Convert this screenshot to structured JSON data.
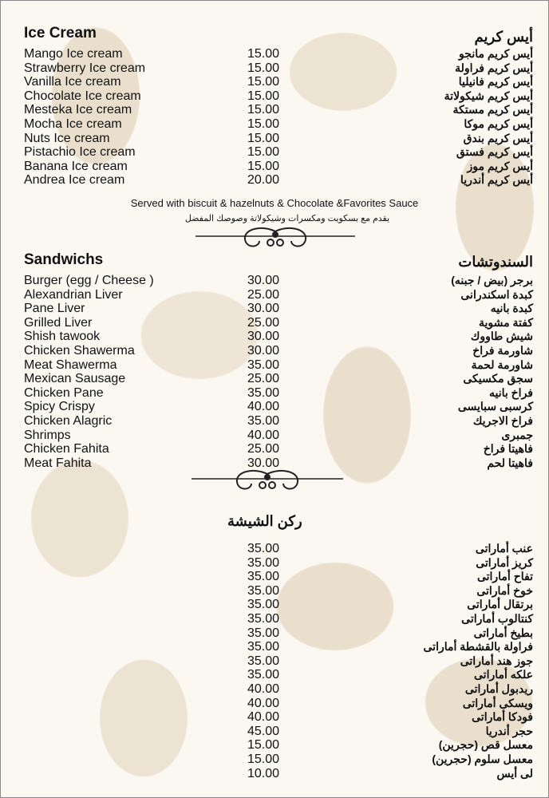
{
  "ice_cream": {
    "title_en": "Ice Cream",
    "title_ar": "أيس كريم",
    "items": [
      {
        "en": "Mango Ice cream",
        "price": "15.00",
        "ar": "أيس كريم مانجو"
      },
      {
        "en": "Strawberry Ice cream",
        "price": "15.00",
        "ar": "أيس كريم فراولة"
      },
      {
        "en": "Vanilla Ice cream",
        "price": "15.00",
        "ar": "أيس كريم فانيليا"
      },
      {
        "en": "Chocolate Ice cream",
        "price": "15.00",
        "ar": "أيس كريم شيكولاتة"
      },
      {
        "en": "Mesteka Ice cream",
        "price": "15.00",
        "ar": "أيس كريم مستكة"
      },
      {
        "en": "Mocha Ice cream",
        "price": "15.00",
        "ar": "أيس كريم موكا"
      },
      {
        "en": "Nuts Ice cream",
        "price": "15.00",
        "ar": "أيس كريم بندق"
      },
      {
        "en": "Pistachio Ice cream",
        "price": "15.00",
        "ar": "أيس كريم فستق"
      },
      {
        "en": "Banana Ice cream",
        "price": "15.00",
        "ar": "أيس كريم موز"
      },
      {
        "en": "Andrea Ice cream",
        "price": "20.00",
        "ar": "أيس كريم أندريا"
      }
    ],
    "note_en": "Served with biscuit & hazelnuts & Chocolate &Favorites Sauce",
    "note_ar": "يقدم مع بسكويت ومكسرات وشيكولاتة وصوصك المفضل"
  },
  "sandwiches": {
    "title_en": "Sandwichs",
    "title_ar": "السندوتشات",
    "items": [
      {
        "en": "Burger (egg / Cheese )",
        "price": "30.00",
        "ar": "برجر (بيض / جبنه)"
      },
      {
        "en": "Alexandrian Liver",
        "price": "25.00",
        "ar": "كبدة اسكندرانى"
      },
      {
        "en": "Pane Liver",
        "price": "30.00",
        "ar": "كبدة بانيه"
      },
      {
        "en": "Grilled Liver",
        "price": "25.00",
        "ar": "كفتة مشوية"
      },
      {
        "en": "Shish tawook",
        "price": "30.00",
        "ar": "شيش طاووك"
      },
      {
        "en": "Chicken Shawerma",
        "price": "30.00",
        "ar": "شاورمة فراخ"
      },
      {
        "en": "Meat Shawerma",
        "price": "35.00",
        "ar": "شاورمة لحمة"
      },
      {
        "en": "Mexican Sausage",
        "price": "25.00",
        "ar": "سجق مكسيكى"
      },
      {
        "en": "Chicken Pane",
        "price": "35.00",
        "ar": "فراخ بانيه"
      },
      {
        "en": "Spicy Crispy",
        "price": "40.00",
        "ar": "كرسبى سبايسى"
      },
      {
        "en": "Chicken Alagric",
        "price": "35.00",
        "ar": "فراخ الاجريك"
      },
      {
        "en": "Shrimps",
        "price": "40.00",
        "ar": "جمبرى"
      },
      {
        "en": "Chicken Fahita",
        "price": "25.00",
        "ar": "فاهيتا فراخ"
      },
      {
        "en": "Meat Fahita",
        "price": "30.00",
        "ar": "فاهيتا لحم"
      }
    ]
  },
  "shisha": {
    "title_ar": "ركن الشيشة",
    "items": [
      {
        "price": "35.00",
        "ar": "عنب أماراتى"
      },
      {
        "price": "35.00",
        "ar": "كريز أماراتى"
      },
      {
        "price": "35.00",
        "ar": "تفاح أماراتى"
      },
      {
        "price": "35.00",
        "ar": "خوخ أماراتى"
      },
      {
        "price": "35.00",
        "ar": "برتقال أماراتى"
      },
      {
        "price": "35.00",
        "ar": "كنتالوب أماراتى"
      },
      {
        "price": "35.00",
        "ar": "بطيخ أماراتى"
      },
      {
        "price": "35.00",
        "ar": "فراولة بالقشطة أماراتى"
      },
      {
        "price": "35.00",
        "ar": "جوز هند أماراتى"
      },
      {
        "price": "35.00",
        "ar": "علكه أماراتى"
      },
      {
        "price": "40.00",
        "ar": "ريدبول أماراتى"
      },
      {
        "price": "40.00",
        "ar": "ويسكى أماراتى"
      },
      {
        "price": "40.00",
        "ar": "فودكا أماراتى"
      },
      {
        "price": "45.00",
        "ar": "حجر أندريا"
      },
      {
        "price": "15.00",
        "ar": "معسل قص (حجرين)"
      },
      {
        "price": "15.00",
        "ar": "معسل سلوم (حجرين)"
      },
      {
        "price": "10.00",
        "ar": "لى أيس"
      }
    ]
  },
  "colors": {
    "background": "#fbf8f2",
    "pattern": "#eadfcd",
    "text": "#111111"
  }
}
